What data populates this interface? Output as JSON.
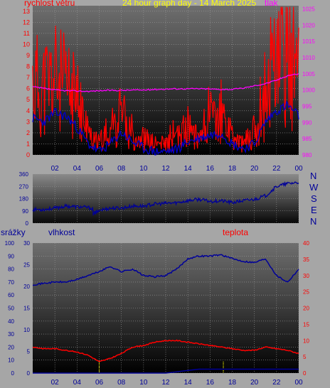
{
  "header": {
    "title": "24 hour graph day - 14 March 2025",
    "wind_label": "rychlost větru",
    "pressure_label": "tlak"
  },
  "direction_labels": [
    "N",
    "W",
    "S",
    "E",
    "N"
  ],
  "lower_labels": {
    "rain": "srážky",
    "humidity": "vlhkost",
    "temp": "teplota"
  },
  "colors": {
    "wind": "#ff0000",
    "wind_avg": "#0000cc",
    "pressure": "#ff00ff",
    "direction": "#000099",
    "humidity": "#000099",
    "temp": "#ff0000",
    "rain": "#000099",
    "title": "#ffff00"
  },
  "x_ticks": [
    "02",
    "04",
    "06",
    "08",
    "10",
    "12",
    "14",
    "16",
    "18",
    "20",
    "22",
    "00"
  ],
  "chart_data": [
    {
      "type": "line",
      "name": "wind-pressure",
      "title": "24 hour graph day - 14 March 2025",
      "x_hours": [
        0,
        1,
        2,
        3,
        4,
        5,
        6,
        7,
        8,
        9,
        10,
        11,
        12,
        13,
        14,
        15,
        16,
        17,
        18,
        19,
        20,
        21,
        22,
        23,
        24
      ],
      "series": [
        {
          "name": "rychlost větru",
          "axis": "left",
          "values": [
            6.5,
            6.0,
            7.0,
            6.0,
            5.0,
            2.0,
            1.0,
            2.5,
            3.5,
            2.0,
            1.5,
            1.0,
            1.0,
            1.5,
            2.5,
            2.0,
            3.0,
            3.5,
            1.5,
            1.0,
            2.0,
            6.0,
            8.0,
            10.0,
            6.5
          ]
        },
        {
          "name": "wind average",
          "axis": "left",
          "values": [
            3.3,
            3.0,
            3.8,
            3.5,
            2.5,
            1.0,
            0.3,
            1.0,
            2.0,
            1.2,
            0.6,
            0.3,
            0.3,
            0.5,
            1.2,
            1.5,
            1.8,
            2.0,
            1.0,
            0.6,
            1.0,
            3.0,
            4.0,
            4.5,
            3.5
          ]
        },
        {
          "name": "tlak",
          "axis": "right",
          "values": [
            1001,
            1000.5,
            1000,
            999.8,
            999.7,
            999.6,
            999.8,
            999.9,
            999.9,
            1000,
            1000,
            1000.2,
            1000.3,
            1000.4,
            1000.4,
            1000.4,
            1000.3,
            1000.2,
            1000.2,
            1000.6,
            1001.3,
            1002,
            1003,
            1004.5,
            1005
          ]
        }
      ],
      "y_left": {
        "ticks": [
          0,
          1,
          2,
          3,
          4,
          5,
          6,
          7,
          8,
          9,
          10,
          11,
          12,
          13
        ],
        "ylim": [
          0,
          13.5
        ]
      },
      "y_right": {
        "ticks": [
          980,
          985,
          990,
          995,
          1000,
          1005,
          1010,
          1015,
          1020,
          1025
        ],
        "ylim": [
          980,
          1026
        ]
      },
      "grid": true
    },
    {
      "type": "line",
      "name": "wind-direction",
      "x_hours": [
        0,
        1,
        2,
        3,
        4,
        5,
        6,
        7,
        8,
        9,
        10,
        11,
        12,
        13,
        14,
        15,
        16,
        17,
        18,
        19,
        20,
        21,
        22,
        23,
        24
      ],
      "series": [
        {
          "name": "wind direction",
          "values": [
            100,
            100,
            110,
            125,
            120,
            115,
            95,
            110,
            110,
            125,
            125,
            140,
            145,
            150,
            165,
            175,
            160,
            165,
            150,
            165,
            175,
            200,
            270,
            290,
            300
          ]
        }
      ],
      "y_ticks": [
        0,
        90,
        180,
        270,
        360
      ],
      "ylim": [
        0,
        360
      ],
      "grid": true
    },
    {
      "type": "line",
      "name": "humidity-temp-rain",
      "x_hours": [
        0,
        1,
        2,
        3,
        4,
        5,
        6,
        7,
        8,
        9,
        10,
        11,
        12,
        13,
        14,
        15,
        16,
        17,
        18,
        19,
        20,
        21,
        22,
        23,
        24
      ],
      "series": [
        {
          "name": "vlhkost",
          "axis": "left",
          "values": [
            68,
            69,
            70,
            70,
            72,
            75,
            78,
            82,
            78,
            80,
            75,
            74,
            75,
            80,
            88,
            90,
            90,
            91,
            88,
            86,
            85,
            88,
            75,
            70,
            80
          ]
        },
        {
          "name": "teplota",
          "axis": "right",
          "values": [
            8,
            7.5,
            7.5,
            7,
            6.5,
            5.5,
            3.5,
            4.5,
            6,
            8,
            8.5,
            9.5,
            10,
            10,
            9.5,
            9,
            8.5,
            8,
            7.5,
            7,
            7,
            8,
            7.5,
            7,
            6
          ]
        },
        {
          "name": "srážky",
          "axis": "left",
          "values": [
            0,
            0,
            0,
            0,
            0,
            0,
            0,
            0,
            0,
            0,
            0,
            0,
            0,
            1.0,
            2.0,
            3.0,
            3.0,
            3.0,
            3.0,
            3.0,
            3.0,
            3.0,
            3.0,
            3.0,
            3.0
          ]
        }
      ],
      "y_left": {
        "ticks": [
          0,
          10,
          20,
          30,
          40,
          50,
          60,
          70,
          80,
          90,
          100
        ],
        "ylim": [
          0,
          100
        ]
      },
      "y_mid": {
        "ticks": [
          0,
          5,
          10,
          15,
          20,
          25,
          30
        ]
      },
      "y_right": {
        "ticks": [
          0,
          5,
          10,
          15,
          20,
          25,
          30,
          35,
          40
        ],
        "ylim": [
          0,
          40
        ]
      },
      "grid": true
    }
  ]
}
